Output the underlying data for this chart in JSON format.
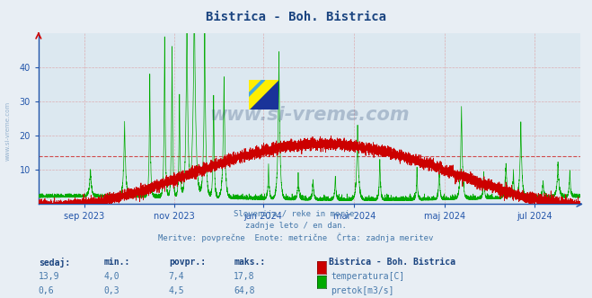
{
  "title": "Bistrica - Boh. Bistrica",
  "title_color": "#1a4480",
  "background_color": "#e8eef4",
  "plot_bg_color": "#dce8f0",
  "ylim": [
    0,
    50
  ],
  "yticks": [
    10,
    20,
    30,
    40
  ],
  "grid_color": "#dd8888",
  "hline_value": 14,
  "hline_color": "#cc2222",
  "temp_color": "#cc0000",
  "flow_color": "#00aa00",
  "axis_color": "#2255aa",
  "tick_color": "#2255aa",
  "x_tick_labels": [
    "sep 2023",
    "nov 2023",
    "jan 2024",
    "mar 2024",
    "maj 2024",
    "jul 2024"
  ],
  "x_tick_positions": [
    0.085,
    0.25,
    0.415,
    0.583,
    0.75,
    0.915
  ],
  "subtitle_lines": [
    "Slovenija / reke in morje.",
    "zadnje leto / en dan.",
    "Meritve: povprečne  Enote: metrične  Črta: zadnja meritev"
  ],
  "subtitle_color": "#4477aa",
  "table_header": [
    "sedaj:",
    "min.:",
    "povpr.:",
    "maks.:"
  ],
  "table_row1": [
    "13,9",
    "4,0",
    "7,4",
    "17,8"
  ],
  "table_row2": [
    "0,6",
    "0,3",
    "4,5",
    "64,8"
  ],
  "legend_title": "Bistrica - Boh. Bistrica",
  "legend_label1": "temperatura[C]",
  "legend_label2": "pretok[m3/s]",
  "watermark": "www.si-vreme.com",
  "watermark_color": "#1a3a6a",
  "watermark_alpha": 0.25,
  "side_watermark_color": "#4477aa",
  "side_watermark_alpha": 0.5
}
